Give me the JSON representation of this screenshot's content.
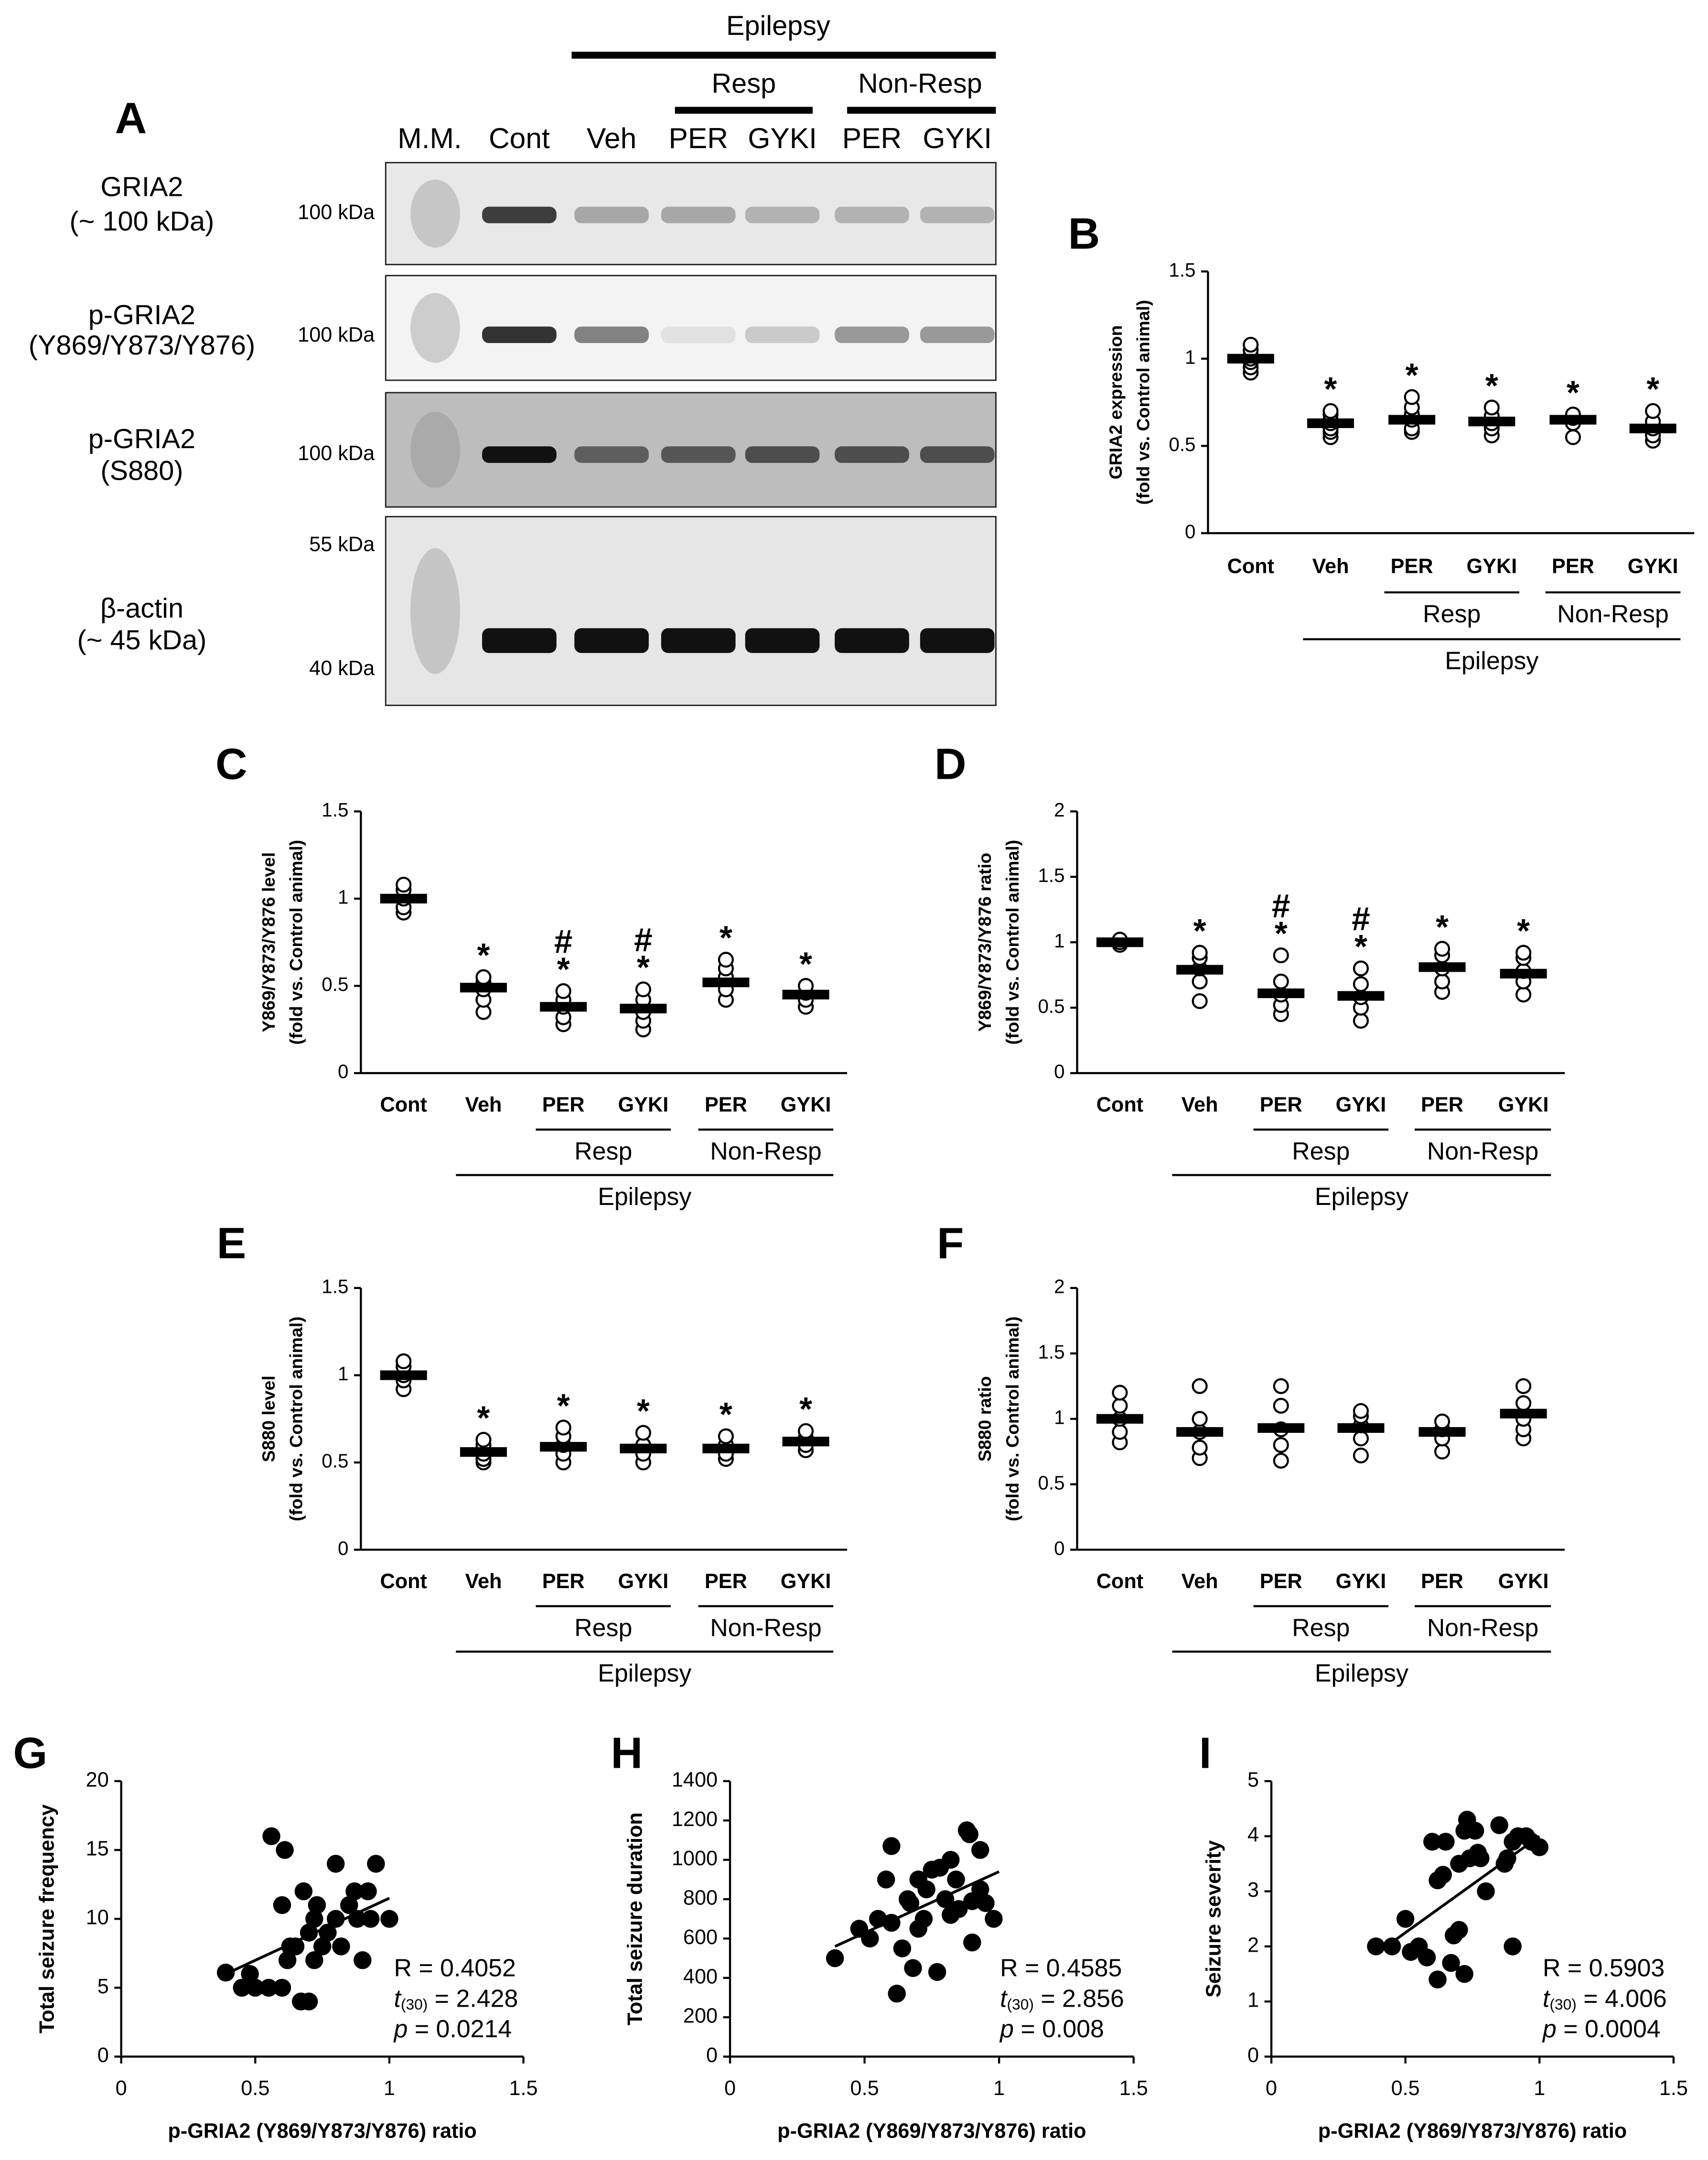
{
  "blot": {
    "panel_label": "A",
    "group": "Epilepsy",
    "subgroups": [
      "Resp",
      "Non-Resp"
    ],
    "lanes": [
      "M.M.",
      "Cont",
      "Veh",
      "PER",
      "GYKI",
      "PER",
      "GYKI"
    ],
    "rows": [
      {
        "name": "GRIA2",
        "detail": "(~ 100 kDa)",
        "markers": [
          "100 kDa"
        ]
      },
      {
        "name": "p-GRIA2",
        "detail": "(Y869/Y873/Y876)",
        "markers": [
          "100 kDa"
        ]
      },
      {
        "name": "p-GRIA2",
        "detail": "(S880)",
        "markers": [
          "100 kDa"
        ]
      },
      {
        "name": "β-actin",
        "detail": "(~ 45 kDa)",
        "markers": [
          "55 kDa",
          "40 kDa"
        ]
      }
    ]
  },
  "chart_data": [
    {
      "type": "dotplot",
      "panel_label": "B",
      "ylabel": [
        "GRIA2 expression",
        "(fold vs. Control animal)"
      ],
      "categories": [
        "Cont",
        "Veh",
        "PER",
        "GYKI",
        "PER",
        "GYKI"
      ],
      "subgroups": [
        "Resp",
        "Non-Resp"
      ],
      "group": "Epilepsy",
      "values": [
        1.0,
        0.63,
        0.65,
        0.64,
        0.65,
        0.6
      ],
      "points": [
        [
          0.92,
          0.95,
          0.98,
          1.0,
          1.02,
          1.05,
          1.08
        ],
        [
          0.55,
          0.58,
          0.6,
          0.63,
          0.65,
          0.68,
          0.7
        ],
        [
          0.58,
          0.6,
          0.65,
          0.68,
          0.72,
          0.78
        ],
        [
          0.56,
          0.6,
          0.63,
          0.67,
          0.72
        ],
        [
          0.55,
          0.63,
          0.66,
          0.68
        ],
        [
          0.53,
          0.56,
          0.6,
          0.64,
          0.7
        ]
      ],
      "markers": [
        [],
        [
          "*"
        ],
        [
          "*"
        ],
        [
          "*"
        ],
        [
          "*"
        ],
        [
          "*"
        ]
      ],
      "ylim": [
        0,
        1.5
      ],
      "yticks": [
        0,
        0.5,
        1,
        1.5
      ]
    },
    {
      "type": "dotplot",
      "panel_label": "C",
      "ylabel": [
        "Y869/Y873/Y876 level",
        "(fold vs. Control animal)"
      ],
      "categories": [
        "Cont",
        "Veh",
        "PER",
        "GYKI",
        "PER",
        "GYKI"
      ],
      "subgroups": [
        "Resp",
        "Non-Resp"
      ],
      "group": "Epilepsy",
      "values": [
        1.0,
        0.49,
        0.38,
        0.37,
        0.52,
        0.45
      ],
      "points": [
        [
          0.92,
          0.95,
          1.0,
          1.05,
          1.08
        ],
        [
          0.35,
          0.42,
          0.48,
          0.52,
          0.55
        ],
        [
          0.28,
          0.32,
          0.38,
          0.42,
          0.47
        ],
        [
          0.25,
          0.3,
          0.35,
          0.42,
          0.48
        ],
        [
          0.42,
          0.48,
          0.55,
          0.6,
          0.65
        ],
        [
          0.38,
          0.42,
          0.46,
          0.5
        ]
      ],
      "markers": [
        [],
        [
          "*"
        ],
        [
          "#",
          "*"
        ],
        [
          "#",
          "*"
        ],
        [
          "*"
        ],
        [
          "*"
        ]
      ],
      "ylim": [
        0,
        1.5
      ],
      "yticks": [
        0,
        0.5,
        1,
        1.5
      ]
    },
    {
      "type": "dotplot",
      "panel_label": "D",
      "ylabel": [
        "Y869/Y873/Y876 ratio",
        "(fold vs. Control animal)"
      ],
      "categories": [
        "Cont",
        "Veh",
        "PER",
        "GYKI",
        "PER",
        "GYKI"
      ],
      "subgroups": [
        "Resp",
        "Non-Resp"
      ],
      "group": "Epilepsy",
      "values": [
        1.0,
        0.79,
        0.61,
        0.59,
        0.81,
        0.76
      ],
      "points": [
        [
          0.98,
          1.0,
          1.02
        ],
        [
          0.55,
          0.7,
          0.8,
          0.88,
          0.92
        ],
        [
          0.45,
          0.52,
          0.6,
          0.7,
          0.9
        ],
        [
          0.4,
          0.5,
          0.58,
          0.68,
          0.8
        ],
        [
          0.62,
          0.7,
          0.8,
          0.9,
          0.95
        ],
        [
          0.6,
          0.7,
          0.78,
          0.88,
          0.92
        ]
      ],
      "markers": [
        [],
        [
          "*"
        ],
        [
          "#",
          "*"
        ],
        [
          "#",
          "*"
        ],
        [
          "*"
        ],
        [
          "*"
        ]
      ],
      "ylim": [
        0,
        2
      ],
      "yticks": [
        0,
        0.5,
        1,
        1.5,
        2
      ]
    },
    {
      "type": "dotplot",
      "panel_label": "E",
      "ylabel": [
        "S880 level",
        "(fold vs. Control animal)"
      ],
      "categories": [
        "Cont",
        "Veh",
        "PER",
        "GYKI",
        "PER",
        "GYKI"
      ],
      "subgroups": [
        "Resp",
        "Non-Resp"
      ],
      "group": "Epilepsy",
      "values": [
        1.0,
        0.56,
        0.59,
        0.58,
        0.58,
        0.62
      ],
      "points": [
        [
          0.92,
          0.97,
          1.0,
          1.05,
          1.08
        ],
        [
          0.5,
          0.52,
          0.55,
          0.6,
          0.63
        ],
        [
          0.5,
          0.55,
          0.6,
          0.65,
          0.7
        ],
        [
          0.5,
          0.55,
          0.6,
          0.67
        ],
        [
          0.52,
          0.55,
          0.6,
          0.65
        ],
        [
          0.57,
          0.6,
          0.64,
          0.68
        ]
      ],
      "markers": [
        [],
        [
          "*"
        ],
        [
          "*"
        ],
        [
          "*"
        ],
        [
          "*"
        ],
        [
          "*"
        ]
      ],
      "ylim": [
        0,
        1.5
      ],
      "yticks": [
        0,
        0.5,
        1,
        1.5
      ]
    },
    {
      "type": "dotplot",
      "panel_label": "F",
      "ylabel": [
        "S880 ratio",
        "(fold vs. Control animal)"
      ],
      "categories": [
        "Cont",
        "Veh",
        "PER",
        "GYKI",
        "PER",
        "GYKI"
      ],
      "subgroups": [
        "Resp",
        "Non-Resp"
      ],
      "group": "Epilepsy",
      "values": [
        1.0,
        0.9,
        0.93,
        0.93,
        0.9,
        1.04
      ],
      "points": [
        [
          0.82,
          0.9,
          1.0,
          1.1,
          1.2
        ],
        [
          0.7,
          0.78,
          0.9,
          1.0,
          1.25
        ],
        [
          0.68,
          0.8,
          0.92,
          1.1,
          1.25
        ],
        [
          0.72,
          0.85,
          0.95,
          1.02,
          1.06
        ],
        [
          0.75,
          0.85,
          0.92,
          0.98
        ],
        [
          0.85,
          0.92,
          1.0,
          1.12,
          1.25
        ]
      ],
      "markers": [
        [],
        [],
        [],
        [],
        [],
        []
      ],
      "ylim": [
        0,
        2
      ],
      "yticks": [
        0,
        0.5,
        1,
        1.5,
        2
      ]
    },
    {
      "type": "scatter",
      "panel_label": "G",
      "xlabel": "p-GRIA2 (Y869/Y873/Y876) ratio",
      "ylabel": "Total seizure frequency",
      "x": [
        0.39,
        0.45,
        0.48,
        0.5,
        0.55,
        0.56,
        0.6,
        0.62,
        0.6,
        0.61,
        0.63,
        0.65,
        0.67,
        0.7,
        0.68,
        0.7,
        0.72,
        0.72,
        0.73,
        0.75,
        0.77,
        0.8,
        0.8,
        0.82,
        0.85,
        0.87,
        0.88,
        0.9,
        0.92,
        0.93,
        0.95,
        1.0
      ],
      "values": [
        6.1,
        5,
        6,
        5,
        5,
        16,
        5,
        7,
        11,
        15,
        8,
        8,
        4,
        4,
        12,
        9,
        10,
        7,
        11,
        8,
        9,
        14,
        10,
        8,
        11,
        12,
        10,
        7,
        12,
        10,
        14,
        10
      ],
      "trend_line": {
        "x": [
          0.39,
          1.0
        ],
        "values": [
          6.0,
          11.5
        ]
      },
      "r_text": "R = 0.4052",
      "t_label": "t",
      "t_df": "(30)",
      "t_value": " = 2.428",
      "p_label": "p",
      "p_value": " = 0.0214",
      "xlim": [
        0,
        1.5
      ],
      "xticks": [
        0,
        0.5,
        1,
        1.5
      ],
      "ylim": [
        0,
        20
      ],
      "yticks": [
        0,
        5,
        10,
        15,
        20
      ]
    },
    {
      "type": "scatter",
      "panel_label": "H",
      "xlabel": "p-GRIA2 (Y869/Y873/Y876) ratio",
      "ylabel": "Total seizure duration",
      "x": [
        0.39,
        0.48,
        0.52,
        0.55,
        0.58,
        0.6,
        0.6,
        0.62,
        0.64,
        0.66,
        0.67,
        0.7,
        0.7,
        0.72,
        0.73,
        0.75,
        0.77,
        0.78,
        0.8,
        0.82,
        0.82,
        0.84,
        0.85,
        0.88,
        0.89,
        0.9,
        0.9,
        0.93,
        0.93,
        0.95,
        0.98,
        0.68
      ],
      "values": [
        500,
        650,
        600,
        700,
        900,
        1070,
        680,
        320,
        550,
        800,
        780,
        650,
        900,
        700,
        850,
        950,
        430,
        960,
        800,
        720,
        1000,
        900,
        750,
        1150,
        1130,
        580,
        790,
        850,
        1050,
        780,
        700,
        450
      ],
      "trend_line": {
        "x": [
          0.39,
          1.0
        ],
        "values": [
          560,
          940
        ]
      },
      "r_text": "R = 0.4585",
      "t_label": "t",
      "t_df": "(30)",
      "t_value": " = 2.856",
      "p_label": "p",
      "p_value": " = 0.008",
      "xlim": [
        0,
        1.5
      ],
      "xticks": [
        0,
        0.5,
        1,
        1.5
      ],
      "ylim": [
        0,
        1400
      ],
      "yticks": [
        0,
        200,
        400,
        600,
        800,
        1000,
        1200,
        1400
      ]
    },
    {
      "type": "scatter",
      "panel_label": "I",
      "xlabel": "p-GRIA2 (Y869/Y873/Y876) ratio",
      "ylabel": "Seizure severity",
      "x": [
        0.39,
        0.45,
        0.5,
        0.52,
        0.55,
        0.58,
        0.6,
        0.62,
        0.62,
        0.65,
        0.67,
        0.68,
        0.7,
        0.7,
        0.72,
        0.72,
        0.73,
        0.74,
        0.76,
        0.77,
        0.78,
        0.8,
        0.85,
        0.87,
        0.88,
        0.9,
        0.9,
        0.92,
        0.95,
        0.97,
        1.0,
        0.64
      ],
      "values": [
        2.0,
        2.0,
        2.5,
        1.9,
        2.0,
        1.8,
        3.9,
        1.4,
        3.2,
        3.9,
        1.7,
        2.2,
        2.3,
        3.5,
        4.1,
        1.5,
        4.3,
        3.6,
        4.1,
        3.7,
        3.6,
        3.0,
        4.2,
        3.5,
        3.6,
        2.0,
        3.9,
        4.0,
        4.0,
        3.9,
        3.8,
        3.3
      ],
      "trend_line": {
        "x": [
          0.4,
          1.0
        ],
        "values": [
          1.9,
          4.0
        ]
      },
      "r_text": "R = 0.5903",
      "t_label": "t",
      "t_df": "(30)",
      "t_value": " = 4.006",
      "p_label": "p",
      "p_value": " = 0.0004",
      "xlim": [
        0,
        1.5
      ],
      "xticks": [
        0,
        0.5,
        1,
        1.5
      ],
      "ylim": [
        0,
        5
      ],
      "yticks": [
        0,
        1,
        2,
        3,
        4,
        5
      ]
    }
  ]
}
